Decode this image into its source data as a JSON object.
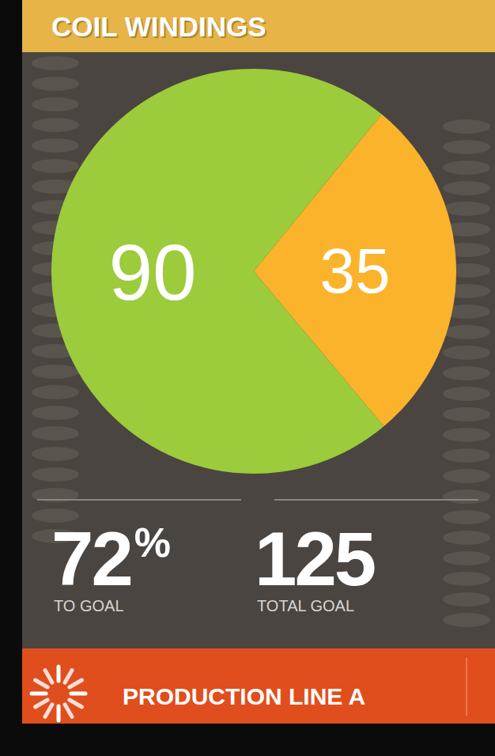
{
  "chart_data": {
    "type": "pie",
    "title": "COIL WINDINGS",
    "values": [
      90,
      35
    ],
    "colors": [
      "#9ccb3b",
      "#fbb32b"
    ],
    "data_labels": true
  },
  "stats": [
    {
      "value": "72%",
      "label": "TO GOAL"
    },
    {
      "value": "125",
      "label": "TOTAL GOAL"
    }
  ],
  "footer": {
    "label": "PRODUCTION LINE A"
  }
}
